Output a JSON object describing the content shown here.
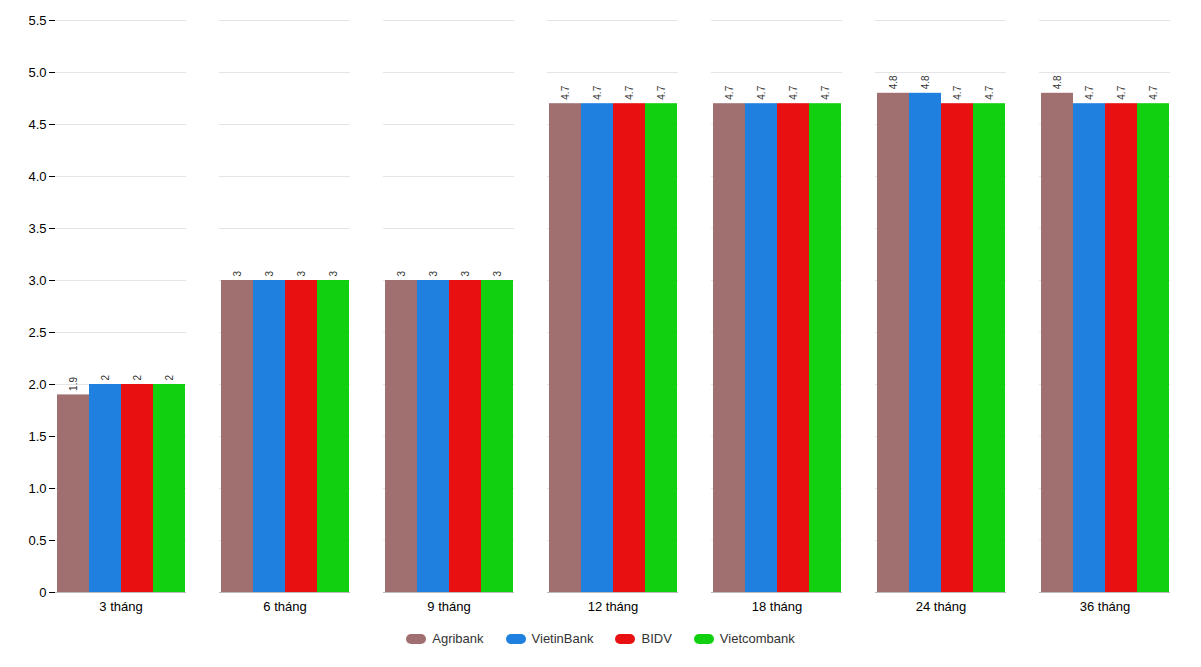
{
  "chart_data": {
    "type": "bar",
    "categories": [
      "3 tháng",
      "6 tháng",
      "9 tháng",
      "12 tháng",
      "18 tháng",
      "24 tháng",
      "36 tháng"
    ],
    "series": [
      {
        "name": "Agribank",
        "color": "#a07070",
        "values": [
          1.9,
          3,
          3,
          4.7,
          4.7,
          4.8,
          4.8
        ]
      },
      {
        "name": "VietinBank",
        "color": "#2080e0",
        "values": [
          2,
          3,
          3,
          4.7,
          4.7,
          4.8,
          4.7
        ]
      },
      {
        "name": "BIDV",
        "color": "#e81010",
        "values": [
          2,
          3,
          3,
          4.7,
          4.7,
          4.7,
          4.7
        ]
      },
      {
        "name": "Vietcombank",
        "color": "#10d010",
        "values": [
          2,
          3,
          3,
          4.7,
          4.7,
          4.7,
          4.7
        ]
      }
    ],
    "ylim": [
      0,
      5.5
    ],
    "yticks": [
      0,
      0.5,
      {
        "value": 1,
        "label": "1.0"
      },
      1.5,
      {
        "value": 2,
        "label": "2.0"
      },
      2.5,
      {
        "value": 3,
        "label": "3.0"
      },
      3.5,
      {
        "value": 4,
        "label": "4.0"
      },
      4.5,
      {
        "value": 5,
        "label": "5.0"
      },
      5.5
    ],
    "grid": true,
    "legend": "bottom",
    "data_labels": true
  }
}
